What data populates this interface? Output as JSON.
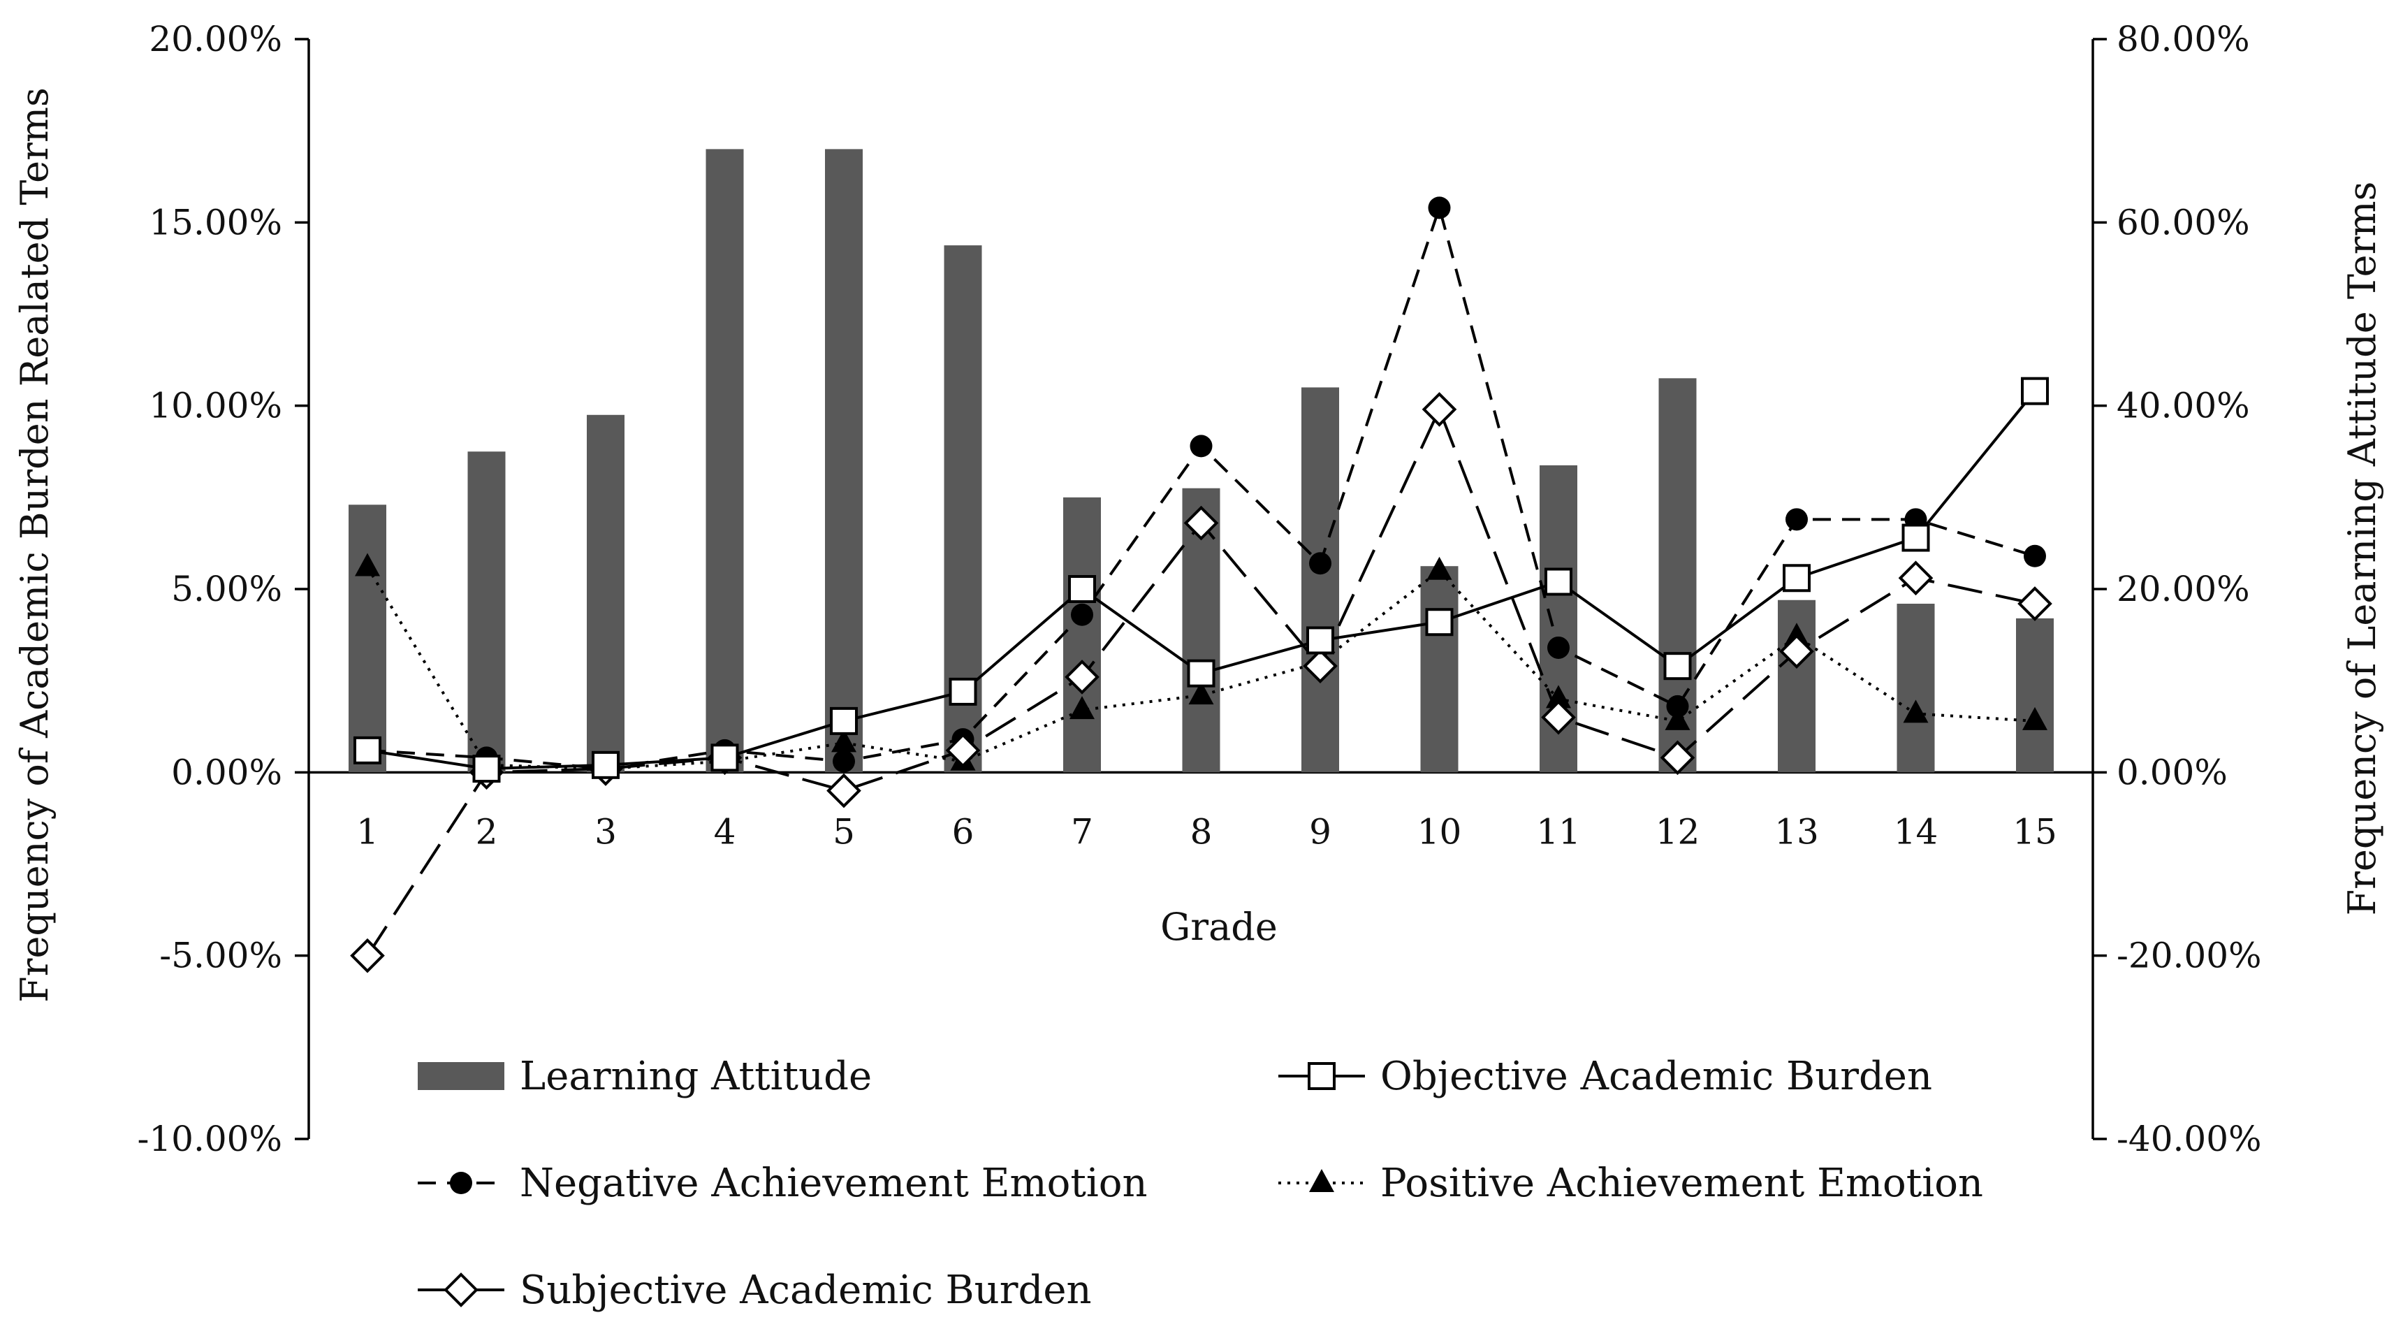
{
  "chart_data": {
    "type": "bar+line",
    "xlabel": "Grade",
    "ylabel_left": "Frequency of Academic Burden Realated Terms",
    "ylabel_right": "Frequency of Learning Attitude Terms",
    "categories": [
      "1",
      "2",
      "3",
      "4",
      "5",
      "6",
      "7",
      "8",
      "9",
      "10",
      "11",
      "12",
      "13",
      "14",
      "15"
    ],
    "left_axis": {
      "min": -10,
      "max": 20,
      "step": 5,
      "ticks": [
        "20.00%",
        "15.00%",
        "10.00%",
        "5.00%",
        "0.00%",
        "-5.00%",
        "-10.00%"
      ]
    },
    "right_axis": {
      "min": -40,
      "max": 80,
      "step": 20,
      "ticks": [
        "80.00%",
        "60.00%",
        "40.00%",
        "20.00%",
        "0.00%",
        "-20.00%",
        "-40.00%"
      ]
    },
    "bar_series": {
      "name": "Learning Attitude",
      "axis": "right",
      "color": "#595959",
      "values": [
        29.2,
        35.0,
        39.0,
        68.0,
        68.0,
        57.5,
        30.0,
        31.0,
        42.0,
        22.5,
        33.5,
        43.0,
        18.8,
        18.4,
        16.8
      ]
    },
    "series": [
      {
        "name": "Objective Academic Burden",
        "axis": "left",
        "dash": "solid",
        "marker": "square-open",
        "values": [
          0.6,
          0.1,
          0.2,
          0.4,
          1.4,
          2.2,
          5.0,
          2.7,
          3.6,
          4.1,
          5.2,
          2.9,
          5.3,
          6.4,
          10.4
        ]
      },
      {
        "name": "Negative Achievement Emotion",
        "axis": "left",
        "dash": "dashed",
        "marker": "circle-filled",
        "values": [
          0.6,
          0.4,
          0.1,
          0.6,
          0.3,
          0.9,
          4.3,
          8.9,
          5.7,
          15.4,
          3.4,
          1.8,
          6.9,
          6.9,
          5.9
        ]
      },
      {
        "name": "Positive Achievement Emotion",
        "axis": "left",
        "dash": "dotted",
        "marker": "triangle-filled",
        "values": [
          5.6,
          0.2,
          0.1,
          0.3,
          0.8,
          0.3,
          1.7,
          2.1,
          3.0,
          5.5,
          2.0,
          1.4,
          3.7,
          1.6,
          1.4
        ]
      },
      {
        "name": "Subjective Academic Burden",
        "axis": "left",
        "dash": "longdash",
        "marker": "diamond-open",
        "values": [
          -5.0,
          0.0,
          0.1,
          0.4,
          -0.5,
          0.6,
          2.6,
          6.8,
          2.9,
          9.9,
          1.5,
          0.4,
          3.3,
          5.3,
          4.6
        ]
      }
    ],
    "legend": [
      {
        "label": "Learning Attitude",
        "kind": "bar"
      },
      {
        "label": "Objective Academic Burden",
        "kind": "square-open"
      },
      {
        "label": "Negative Achievement Emotion",
        "kind": "circle-filled"
      },
      {
        "label": "Positive Achievement Emotion",
        "kind": "triangle-filled"
      },
      {
        "label": "Subjective Academic Burden",
        "kind": "diamond-open"
      }
    ],
    "grid": false,
    "legend_placement": "bottom"
  }
}
